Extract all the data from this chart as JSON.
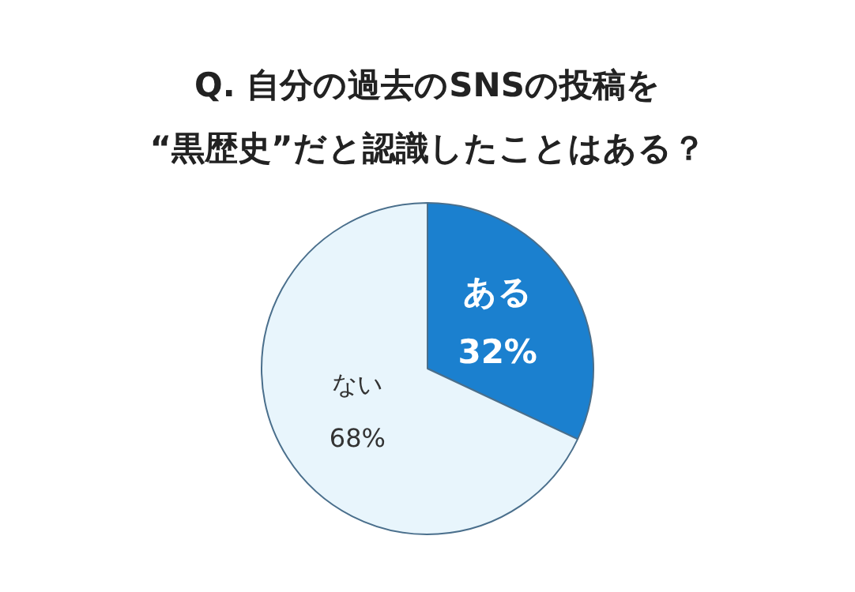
{
  "chart_data": {
    "type": "pie",
    "title": "Q. 自分の過去のSNSの投稿を\n“黒歴史”だと認識したことはある？",
    "categories": [
      "ある",
      "ない"
    ],
    "values": [
      32,
      68
    ],
    "colors": [
      "#1b80cf",
      "#e8f5fc"
    ],
    "value_labels": [
      "32%",
      "68%"
    ],
    "legend": false
  }
}
